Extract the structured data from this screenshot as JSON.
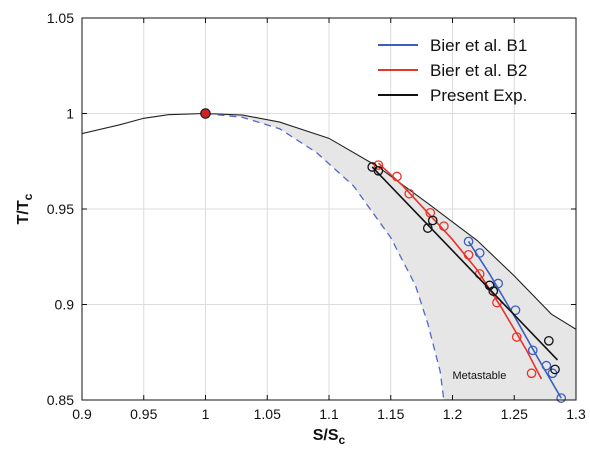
{
  "chart_data": {
    "type": "scatter",
    "xlabel": "S/S",
    "xlabel_sub": "c",
    "ylabel": "T/T",
    "ylabel_sub": "c",
    "xlim": [
      0.9,
      1.3
    ],
    "ylim": [
      0.85,
      1.05
    ],
    "xticks": [
      "0.9",
      "0.95",
      "1",
      "1.05",
      "1.1",
      "1.15",
      "1.2",
      "1.25",
      "1.3"
    ],
    "yticks": [
      "0.85",
      "0.9",
      "0.95",
      "1",
      "1.05"
    ],
    "grid": true,
    "legend_position": "top-right",
    "annotation": "Metastable",
    "critical_point": {
      "x": 1.0,
      "y": 1.0,
      "color": "#cc2222"
    },
    "binodal": {
      "color": "#222222",
      "points": [
        [
          0.9,
          0.9895
        ],
        [
          0.93,
          0.994
        ],
        [
          0.95,
          0.9975
        ],
        [
          0.97,
          0.9994
        ],
        [
          1.0,
          1.0
        ],
        [
          1.03,
          0.9992
        ],
        [
          1.06,
          0.9955
        ],
        [
          1.1,
          0.987
        ],
        [
          1.14,
          0.972
        ],
        [
          1.18,
          0.953
        ],
        [
          1.22,
          0.9335
        ],
        [
          1.25,
          0.915
        ],
        [
          1.28,
          0.895
        ],
        [
          1.3,
          0.887
        ]
      ]
    },
    "spinodal": {
      "color": "#5566cc",
      "points": [
        [
          1.0,
          1.0
        ],
        [
          1.03,
          0.998
        ],
        [
          1.06,
          0.992
        ],
        [
          1.09,
          0.9795
        ],
        [
          1.12,
          0.962
        ],
        [
          1.15,
          0.935
        ],
        [
          1.17,
          0.91
        ],
        [
          1.18,
          0.89
        ],
        [
          1.19,
          0.865
        ],
        [
          1.193,
          0.85
        ]
      ]
    },
    "series": [
      {
        "name": "Bier et al. B1",
        "color": "#3a5fbf",
        "points": [
          [
            1.213,
            0.933
          ],
          [
            1.222,
            0.927
          ],
          [
            1.237,
            0.911
          ],
          [
            1.251,
            0.897
          ],
          [
            1.265,
            0.876
          ],
          [
            1.276,
            0.868
          ],
          [
            1.281,
            0.864
          ],
          [
            1.288,
            0.851
          ]
        ],
        "fit": [
          [
            1.213,
            0.933
          ],
          [
            1.23,
            0.916
          ],
          [
            1.25,
            0.894
          ],
          [
            1.27,
            0.871
          ],
          [
            1.288,
            0.851
          ]
        ]
      },
      {
        "name": "Bier et al. B2",
        "color": "#e8332a",
        "points": [
          [
            1.14,
            0.973
          ],
          [
            1.155,
            0.967
          ],
          [
            1.165,
            0.958
          ],
          [
            1.182,
            0.948
          ],
          [
            1.193,
            0.941
          ],
          [
            1.213,
            0.926
          ],
          [
            1.222,
            0.916
          ],
          [
            1.236,
            0.901
          ],
          [
            1.252,
            0.883
          ],
          [
            1.264,
            0.864
          ]
        ],
        "fit": [
          [
            1.14,
            0.974
          ],
          [
            1.16,
            0.962
          ],
          [
            1.18,
            0.948
          ],
          [
            1.2,
            0.934
          ],
          [
            1.22,
            0.918
          ],
          [
            1.24,
            0.898
          ],
          [
            1.26,
            0.876
          ],
          [
            1.272,
            0.861
          ]
        ]
      },
      {
        "name": "Present Exp.",
        "color": "#111111",
        "points": [
          [
            1.135,
            0.972
          ],
          [
            1.14,
            0.97
          ],
          [
            1.18,
            0.94
          ],
          [
            1.184,
            0.944
          ],
          [
            1.23,
            0.91
          ],
          [
            1.233,
            0.907
          ],
          [
            1.278,
            0.881
          ],
          [
            1.283,
            0.866
          ]
        ],
        "fit": [
          [
            1.135,
            0.972
          ],
          [
            1.285,
            0.871
          ]
        ]
      }
    ]
  }
}
